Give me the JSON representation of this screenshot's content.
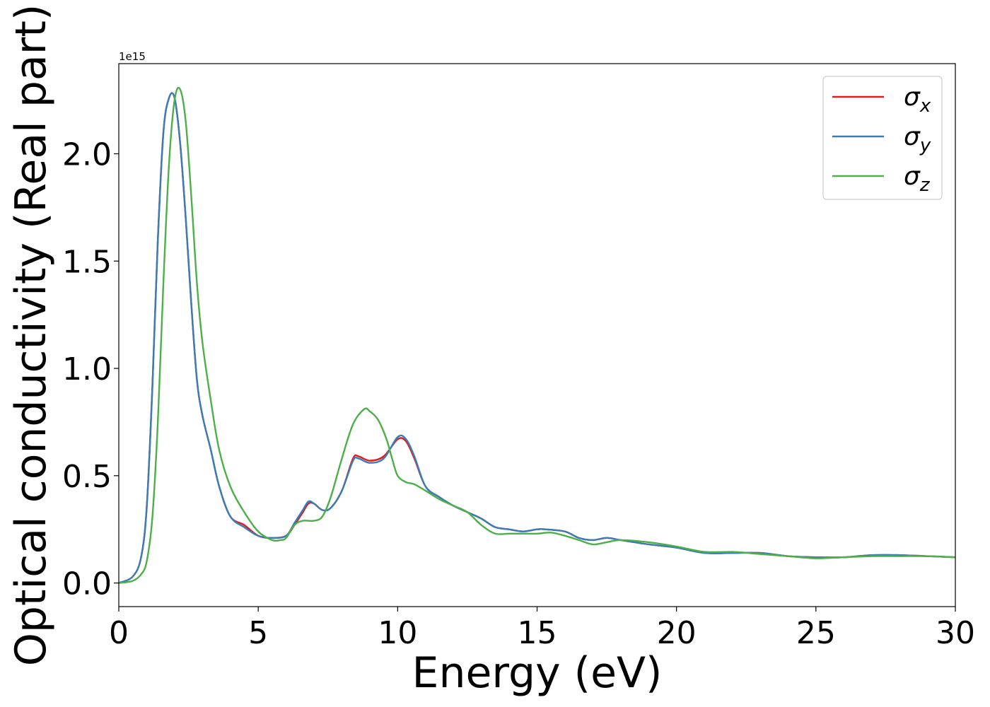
{
  "chart_data": {
    "type": "line",
    "xlabel": "Energy (eV)",
    "ylabel": "Optical conductivity (Real part)",
    "offset_text": "1e15",
    "xlim": [
      0,
      30
    ],
    "ylim": [
      -0.11,
      2.42
    ],
    "xticks": [
      0,
      5,
      10,
      15,
      20,
      25,
      30
    ],
    "xtick_labels": [
      "0",
      "5",
      "10",
      "15",
      "20",
      "25",
      "30"
    ],
    "yticks": [
      0.0,
      0.5,
      1.0,
      1.5,
      2.0
    ],
    "ytick_labels": [
      "0.0",
      "0.5",
      "1.0",
      "1.5",
      "2.0"
    ],
    "y_scale_exponent": 15,
    "grid": false,
    "legend_position": "upper-right",
    "series": [
      {
        "name": "σx",
        "symbol": "σ",
        "subscript": "x",
        "color": "#e41a1c",
        "x": [
          0,
          0.5,
          0.8,
          1.0,
          1.2,
          1.4,
          1.6,
          1.8,
          2.0,
          2.2,
          2.4,
          2.6,
          2.8,
          3.0,
          3.3,
          3.6,
          4.0,
          4.5,
          5.0,
          5.5,
          6.0,
          6.3,
          6.6,
          6.8,
          7.0,
          7.3,
          7.6,
          8.0,
          8.4,
          8.6,
          9.0,
          9.5,
          10.0,
          10.3,
          10.6,
          11.0,
          11.5,
          12.0,
          12.5,
          13.0,
          13.5,
          14.0,
          14.5,
          15.0,
          15.3,
          16.0,
          16.5,
          17.0,
          17.5,
          18.0,
          19.0,
          20.0,
          21.0,
          22.0,
          23.0,
          24.0,
          25.0,
          26.0,
          27.0,
          28.0,
          29.0,
          30.0
        ],
        "values": [
          0.0,
          0.03,
          0.12,
          0.35,
          0.9,
          1.6,
          2.1,
          2.26,
          2.26,
          2.05,
          1.7,
          1.3,
          0.95,
          0.78,
          0.62,
          0.45,
          0.31,
          0.27,
          0.22,
          0.21,
          0.22,
          0.27,
          0.33,
          0.37,
          0.37,
          0.34,
          0.35,
          0.43,
          0.58,
          0.59,
          0.57,
          0.59,
          0.67,
          0.66,
          0.58,
          0.45,
          0.4,
          0.36,
          0.33,
          0.3,
          0.26,
          0.25,
          0.24,
          0.25,
          0.25,
          0.24,
          0.21,
          0.2,
          0.21,
          0.2,
          0.18,
          0.165,
          0.14,
          0.14,
          0.14,
          0.125,
          0.12,
          0.12,
          0.13,
          0.13,
          0.125,
          0.12
        ]
      },
      {
        "name": "σy",
        "symbol": "σ",
        "subscript": "y",
        "color": "#377eb8",
        "x": [
          0,
          0.5,
          0.8,
          1.0,
          1.2,
          1.4,
          1.6,
          1.8,
          2.0,
          2.2,
          2.4,
          2.6,
          2.8,
          3.0,
          3.3,
          3.6,
          4.0,
          4.5,
          5.0,
          5.5,
          6.0,
          6.3,
          6.6,
          6.8,
          7.0,
          7.3,
          7.6,
          8.0,
          8.4,
          8.6,
          9.0,
          9.5,
          10.0,
          10.3,
          10.6,
          11.0,
          11.5,
          12.0,
          12.5,
          13.0,
          13.5,
          14.0,
          14.5,
          15.0,
          15.3,
          16.0,
          16.5,
          17.0,
          17.5,
          18.0,
          19.0,
          20.0,
          21.0,
          22.0,
          23.0,
          24.0,
          25.0,
          26.0,
          27.0,
          28.0,
          29.0,
          30.0
        ],
        "values": [
          0.0,
          0.03,
          0.12,
          0.35,
          0.9,
          1.6,
          2.1,
          2.26,
          2.26,
          2.05,
          1.7,
          1.3,
          0.95,
          0.78,
          0.62,
          0.45,
          0.31,
          0.26,
          0.22,
          0.21,
          0.22,
          0.28,
          0.34,
          0.38,
          0.37,
          0.34,
          0.35,
          0.43,
          0.57,
          0.58,
          0.56,
          0.58,
          0.68,
          0.67,
          0.59,
          0.45,
          0.4,
          0.36,
          0.33,
          0.3,
          0.26,
          0.25,
          0.24,
          0.25,
          0.25,
          0.24,
          0.21,
          0.2,
          0.21,
          0.2,
          0.18,
          0.165,
          0.14,
          0.14,
          0.14,
          0.125,
          0.12,
          0.12,
          0.13,
          0.13,
          0.125,
          0.12
        ]
      },
      {
        "name": "σz",
        "symbol": "σ",
        "subscript": "z",
        "color": "#4daf4a",
        "x": [
          0,
          0.5,
          0.8,
          1.0,
          1.2,
          1.4,
          1.6,
          1.8,
          2.0,
          2.2,
          2.4,
          2.6,
          2.8,
          3.0,
          3.3,
          3.6,
          4.0,
          4.5,
          5.0,
          5.5,
          5.8,
          6.0,
          6.3,
          6.6,
          7.0,
          7.3,
          7.6,
          8.0,
          8.4,
          8.8,
          9.0,
          9.3,
          9.6,
          9.8,
          10.0,
          10.3,
          10.6,
          11.0,
          11.5,
          12.0,
          12.5,
          13.0,
          13.5,
          14.0,
          14.5,
          15.0,
          15.5,
          16.0,
          16.5,
          17.0,
          17.5,
          18.0,
          19.0,
          20.0,
          21.0,
          22.0,
          23.0,
          24.0,
          25.0,
          26.0,
          27.0,
          28.0,
          29.0,
          30.0
        ],
        "values": [
          0.0,
          0.01,
          0.04,
          0.1,
          0.3,
          0.75,
          1.4,
          1.95,
          2.25,
          2.3,
          2.15,
          1.8,
          1.4,
          1.12,
          0.85,
          0.62,
          0.45,
          0.33,
          0.24,
          0.2,
          0.2,
          0.21,
          0.27,
          0.29,
          0.29,
          0.31,
          0.4,
          0.58,
          0.74,
          0.81,
          0.8,
          0.76,
          0.67,
          0.58,
          0.5,
          0.47,
          0.46,
          0.43,
          0.39,
          0.36,
          0.33,
          0.27,
          0.23,
          0.23,
          0.23,
          0.23,
          0.235,
          0.22,
          0.2,
          0.18,
          0.19,
          0.2,
          0.19,
          0.17,
          0.145,
          0.145,
          0.135,
          0.125,
          0.115,
          0.12,
          0.125,
          0.125,
          0.125,
          0.12
        ]
      }
    ]
  }
}
